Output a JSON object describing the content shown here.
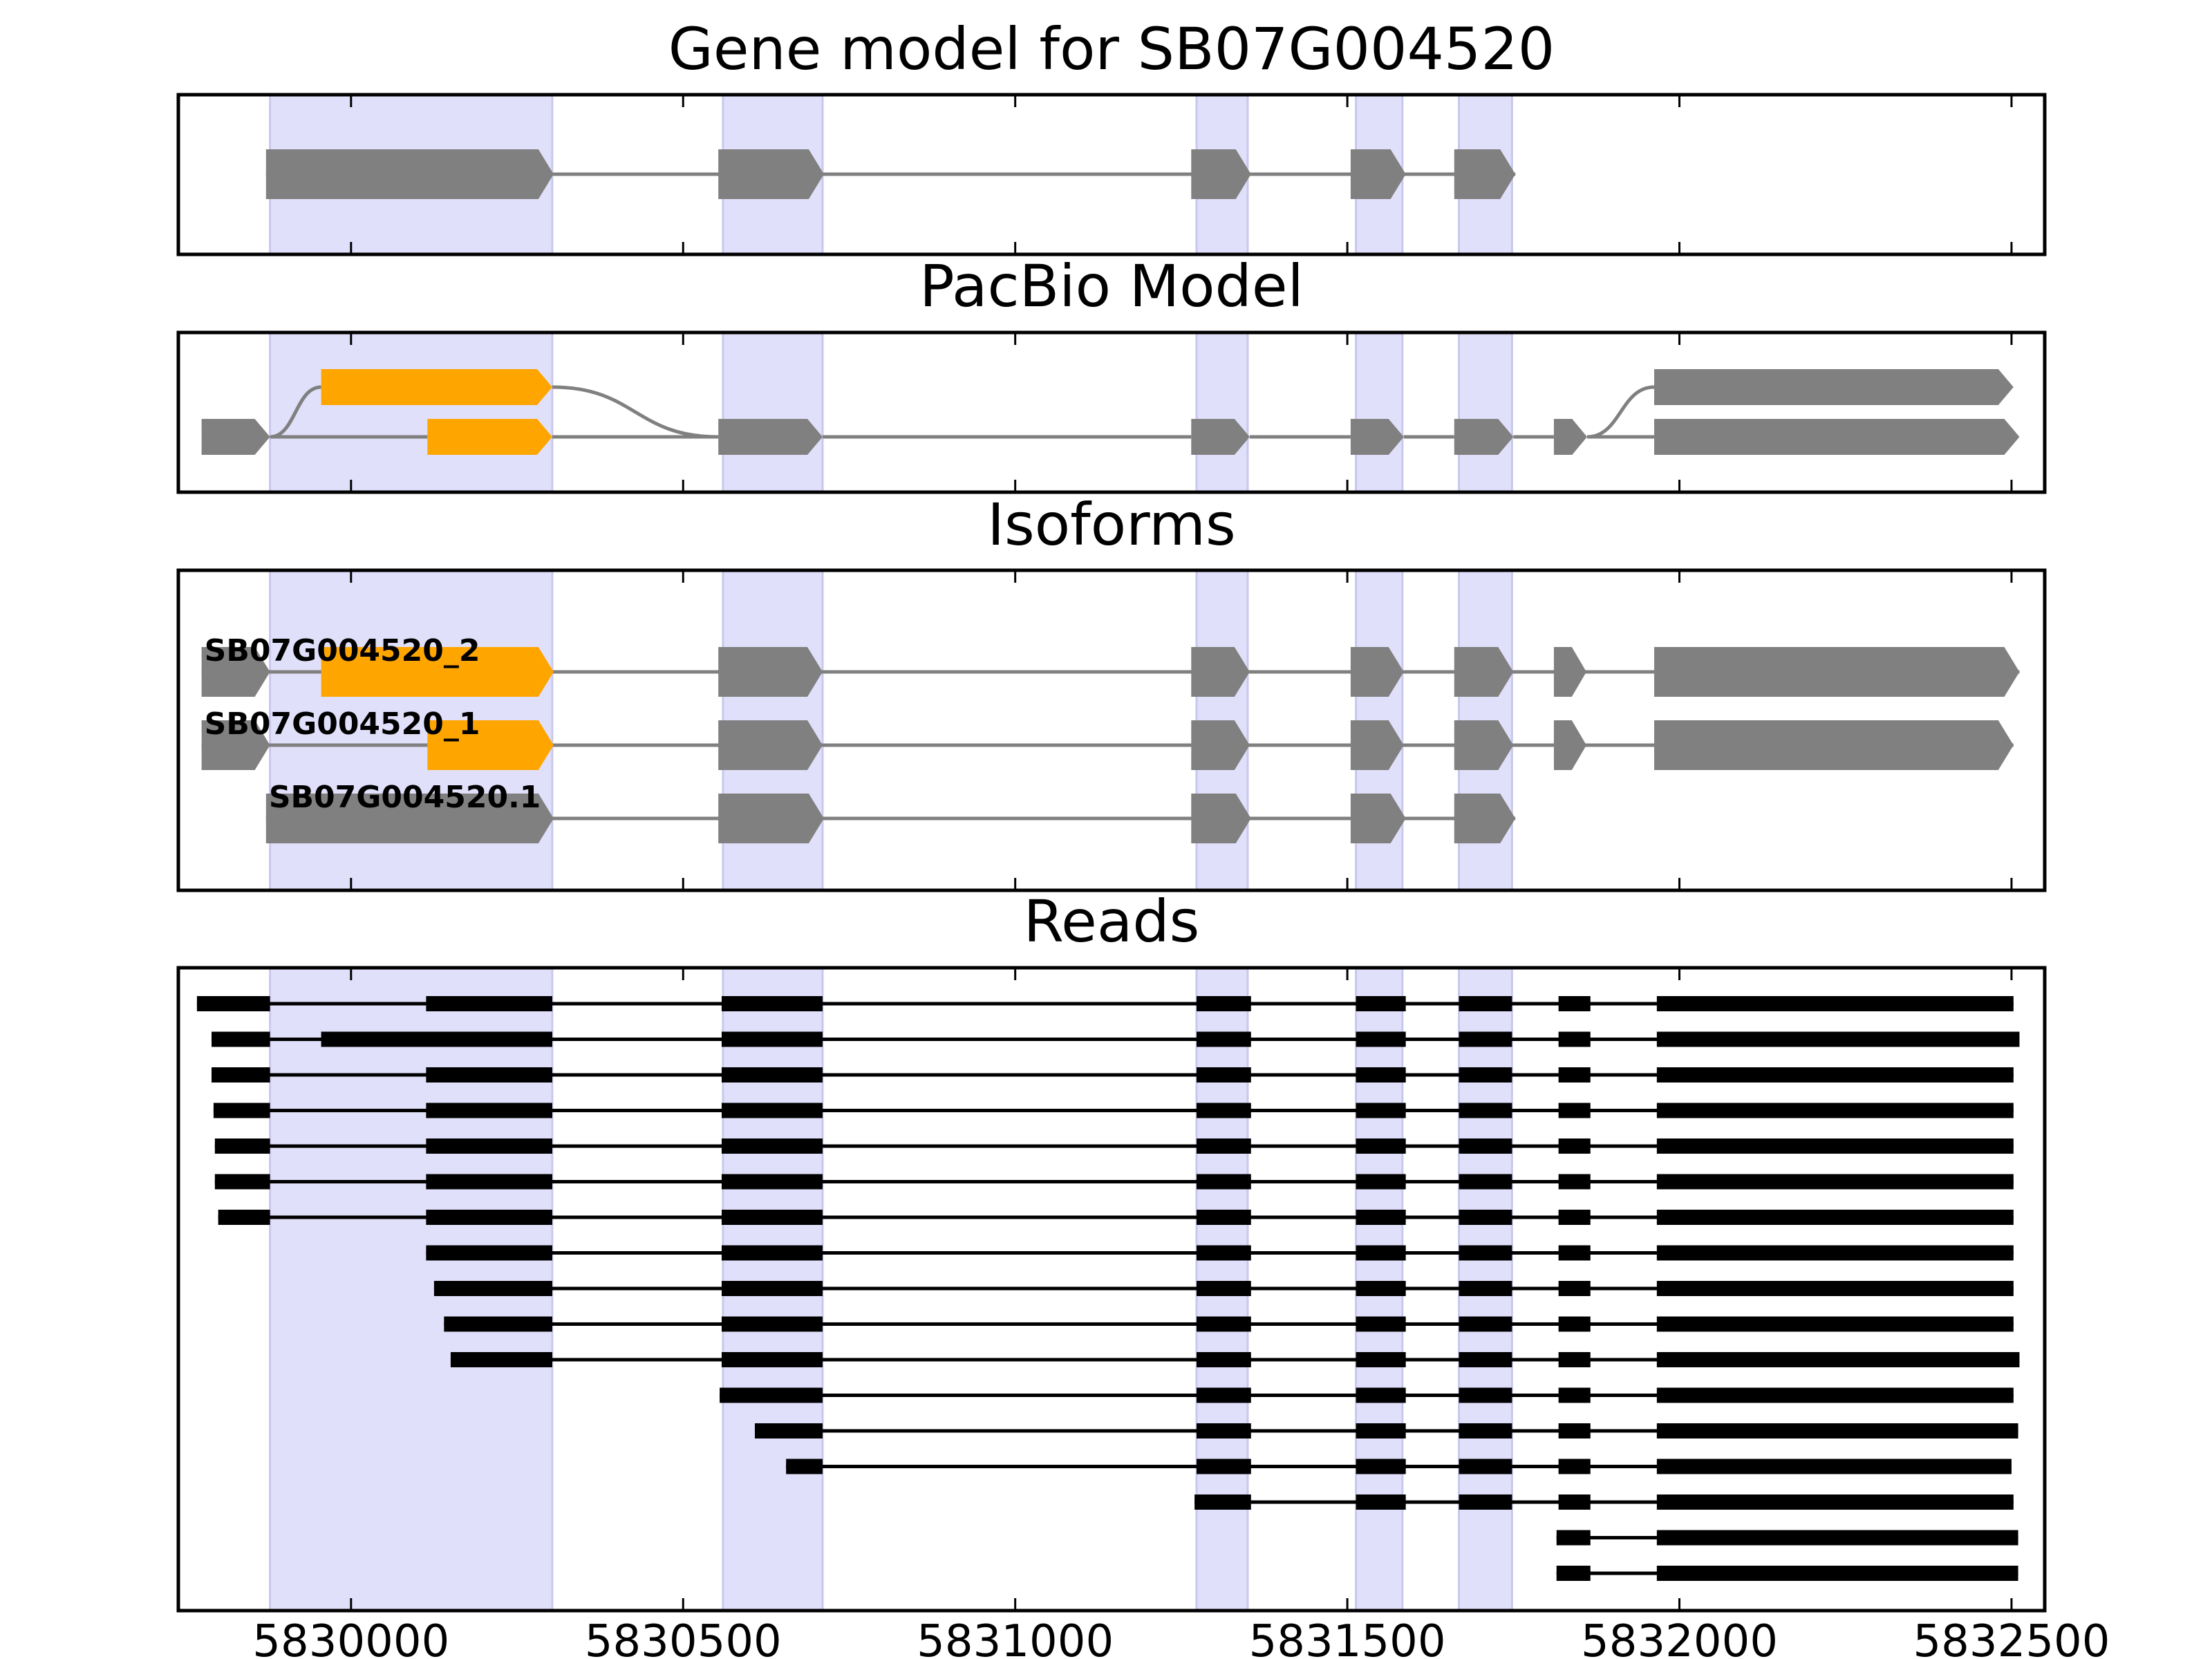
{
  "chart_data": {
    "type": "gene-structure",
    "title": "Gene model for SB07G004520",
    "xlim": [
      5829740,
      5832550
    ],
    "x_ticks": [
      5830000,
      5830500,
      5831000,
      5831500,
      5832000,
      5832500
    ],
    "x_tick_labels": [
      "5830000",
      "5830500",
      "5831000",
      "5831500",
      "5832000",
      "5832500"
    ],
    "colors": {
      "exon": "#808080",
      "cds": "#ffa500",
      "read": "#000000",
      "shade": "#e0e0fa",
      "intron": "#808080"
    },
    "shaded_regions": [
      [
        5829878,
        5830303
      ],
      [
        5830560,
        5830710
      ],
      [
        5831273,
        5831350
      ],
      [
        5831513,
        5831583
      ],
      [
        5831668,
        5831748
      ]
    ],
    "panels": [
      {
        "title": "Gene model for SB07G004520",
        "kind": "model",
        "rows": [
          {
            "label": "",
            "exons": [
              [
                5829872,
                5830305
              ],
              [
                5830553,
                5830712
              ],
              [
                5831265,
                5831355
              ],
              [
                5831505,
                5831588
              ],
              [
                5831661,
                5831753
              ]
            ],
            "cds": []
          }
        ]
      },
      {
        "title": "PacBio Model",
        "kind": "graph",
        "nodes": [
          {
            "id": "e0",
            "row": 1,
            "start": 5829775,
            "end": 5829878,
            "type": "exon"
          },
          {
            "id": "c1",
            "row": 0,
            "start": 5829955,
            "end": 5830303,
            "type": "cds"
          },
          {
            "id": "c2",
            "row": 1,
            "start": 5830115,
            "end": 5830303,
            "type": "cds"
          },
          {
            "id": "e3",
            "row": 1,
            "start": 5830553,
            "end": 5830710,
            "type": "exon"
          },
          {
            "id": "e4",
            "row": 1,
            "start": 5831265,
            "end": 5831353,
            "type": "exon"
          },
          {
            "id": "e5",
            "row": 1,
            "start": 5831505,
            "end": 5831585,
            "type": "exon"
          },
          {
            "id": "e6",
            "row": 1,
            "start": 5831661,
            "end": 5831750,
            "type": "exon"
          },
          {
            "id": "e7",
            "row": 1,
            "start": 5831811,
            "end": 5831861,
            "type": "exon"
          },
          {
            "id": "e8",
            "row": 0,
            "start": 5831962,
            "end": 5832503,
            "type": "exon"
          },
          {
            "id": "e9",
            "row": 1,
            "start": 5831962,
            "end": 5832512,
            "type": "exon"
          }
        ],
        "edges": [
          [
            "e0",
            "c1"
          ],
          [
            "e0",
            "c2"
          ],
          [
            "c1",
            "e3"
          ],
          [
            "c2",
            "e3"
          ],
          [
            "e3",
            "e4"
          ],
          [
            "e4",
            "e5"
          ],
          [
            "e5",
            "e6"
          ],
          [
            "e6",
            "e7"
          ],
          [
            "e7",
            "e8"
          ],
          [
            "e7",
            "e9"
          ]
        ]
      },
      {
        "title": "Isoforms",
        "kind": "model",
        "rows": [
          {
            "label": "SB07G004520_2",
            "exons": [
              [
                5829775,
                5829878
              ],
              [
                5830553,
                5830710
              ],
              [
                5831265,
                5831353
              ],
              [
                5831505,
                5831585
              ],
              [
                5831661,
                5831750
              ],
              [
                5831811,
                5831860
              ],
              [
                5831962,
                5832512
              ]
            ],
            "cds": [
              [
                5829955,
                5830305
              ]
            ]
          },
          {
            "label": "SB07G004520_1",
            "exons": [
              [
                5829775,
                5829878
              ],
              [
                5830553,
                5830710
              ],
              [
                5831265,
                5831353
              ],
              [
                5831505,
                5831585
              ],
              [
                5831661,
                5831750
              ],
              [
                5831811,
                5831860
              ],
              [
                5831962,
                5832503
              ]
            ],
            "cds": [
              [
                5830115,
                5830305
              ]
            ]
          },
          {
            "label": "SB07G004520.1",
            "exons": [
              [
                5829872,
                5830305
              ],
              [
                5830553,
                5830712
              ],
              [
                5831265,
                5831355
              ],
              [
                5831505,
                5831588
              ],
              [
                5831661,
                5831753
              ]
            ],
            "cds": []
          }
        ]
      },
      {
        "title": "Reads",
        "kind": "reads",
        "rows": [
          {
            "exons": [
              [
                5829768,
                5829878
              ],
              [
                5830113,
                5830303
              ],
              [
                5830558,
                5830710
              ],
              [
                5831273,
                5831355
              ],
              [
                5831513,
                5831588
              ],
              [
                5831668,
                5831748
              ],
              [
                5831818,
                5831866
              ],
              [
                5831966,
                5832503
              ]
            ]
          },
          {
            "exons": [
              [
                5829790,
                5829878
              ],
              [
                5829955,
                5830303
              ],
              [
                5830558,
                5830710
              ],
              [
                5831273,
                5831355
              ],
              [
                5831513,
                5831588
              ],
              [
                5831668,
                5831748
              ],
              [
                5831818,
                5831866
              ],
              [
                5831966,
                5832512
              ]
            ]
          },
          {
            "exons": [
              [
                5829790,
                5829878
              ],
              [
                5830113,
                5830303
              ],
              [
                5830558,
                5830710
              ],
              [
                5831273,
                5831355
              ],
              [
                5831513,
                5831588
              ],
              [
                5831668,
                5831748
              ],
              [
                5831818,
                5831866
              ],
              [
                5831966,
                5832503
              ]
            ]
          },
          {
            "exons": [
              [
                5829793,
                5829878
              ],
              [
                5830113,
                5830303
              ],
              [
                5830558,
                5830710
              ],
              [
                5831273,
                5831355
              ],
              [
                5831513,
                5831588
              ],
              [
                5831668,
                5831748
              ],
              [
                5831818,
                5831866
              ],
              [
                5831966,
                5832503
              ]
            ]
          },
          {
            "exons": [
              [
                5829795,
                5829878
              ],
              [
                5830113,
                5830303
              ],
              [
                5830558,
                5830710
              ],
              [
                5831273,
                5831355
              ],
              [
                5831513,
                5831588
              ],
              [
                5831668,
                5831748
              ],
              [
                5831818,
                5831866
              ],
              [
                5831966,
                5832503
              ]
            ]
          },
          {
            "exons": [
              [
                5829795,
                5829878
              ],
              [
                5830113,
                5830303
              ],
              [
                5830558,
                5830710
              ],
              [
                5831273,
                5831355
              ],
              [
                5831513,
                5831588
              ],
              [
                5831668,
                5831748
              ],
              [
                5831818,
                5831866
              ],
              [
                5831966,
                5832503
              ]
            ]
          },
          {
            "exons": [
              [
                5829800,
                5829878
              ],
              [
                5830113,
                5830303
              ],
              [
                5830558,
                5830710
              ],
              [
                5831273,
                5831355
              ],
              [
                5831513,
                5831588
              ],
              [
                5831668,
                5831748
              ],
              [
                5831818,
                5831866
              ],
              [
                5831966,
                5832503
              ]
            ]
          },
          {
            "exons": [
              [
                5830113,
                5830303
              ],
              [
                5830558,
                5830710
              ],
              [
                5831273,
                5831355
              ],
              [
                5831513,
                5831588
              ],
              [
                5831668,
                5831748
              ],
              [
                5831818,
                5831866
              ],
              [
                5831966,
                5832503
              ]
            ]
          },
          {
            "exons": [
              [
                5830125,
                5830303
              ],
              [
                5830558,
                5830710
              ],
              [
                5831273,
                5831355
              ],
              [
                5831513,
                5831588
              ],
              [
                5831668,
                5831748
              ],
              [
                5831818,
                5831866
              ],
              [
                5831966,
                5832503
              ]
            ]
          },
          {
            "exons": [
              [
                5830140,
                5830303
              ],
              [
                5830558,
                5830710
              ],
              [
                5831273,
                5831355
              ],
              [
                5831513,
                5831588
              ],
              [
                5831668,
                5831748
              ],
              [
                5831818,
                5831866
              ],
              [
                5831966,
                5832503
              ]
            ]
          },
          {
            "exons": [
              [
                5830150,
                5830303
              ],
              [
                5830558,
                5830710
              ],
              [
                5831273,
                5831355
              ],
              [
                5831513,
                5831588
              ],
              [
                5831668,
                5831748
              ],
              [
                5831818,
                5831866
              ],
              [
                5831966,
                5832512
              ]
            ]
          },
          {
            "exons": [
              [
                5830555,
                5830710
              ],
              [
                5831273,
                5831355
              ],
              [
                5831513,
                5831588
              ],
              [
                5831668,
                5831748
              ],
              [
                5831818,
                5831866
              ],
              [
                5831966,
                5832503
              ]
            ]
          },
          {
            "exons": [
              [
                5830608,
                5830710
              ],
              [
                5831273,
                5831355
              ],
              [
                5831513,
                5831588
              ],
              [
                5831668,
                5831748
              ],
              [
                5831818,
                5831866
              ],
              [
                5831966,
                5832510
              ]
            ]
          },
          {
            "exons": [
              [
                5830655,
                5830710
              ],
              [
                5831273,
                5831355
              ],
              [
                5831513,
                5831588
              ],
              [
                5831668,
                5831748
              ],
              [
                5831818,
                5831866
              ],
              [
                5831966,
                5832500
              ]
            ]
          },
          {
            "exons": [
              [
                5831270,
                5831355
              ],
              [
                5831513,
                5831588
              ],
              [
                5831668,
                5831748
              ],
              [
                5831818,
                5831866
              ],
              [
                5831966,
                5832503
              ]
            ]
          },
          {
            "exons": [
              [
                5831815,
                5831866
              ],
              [
                5831966,
                5832510
              ]
            ]
          },
          {
            "exons": [
              [
                5831815,
                5831866
              ],
              [
                5831966,
                5832510
              ]
            ]
          }
        ]
      }
    ]
  }
}
